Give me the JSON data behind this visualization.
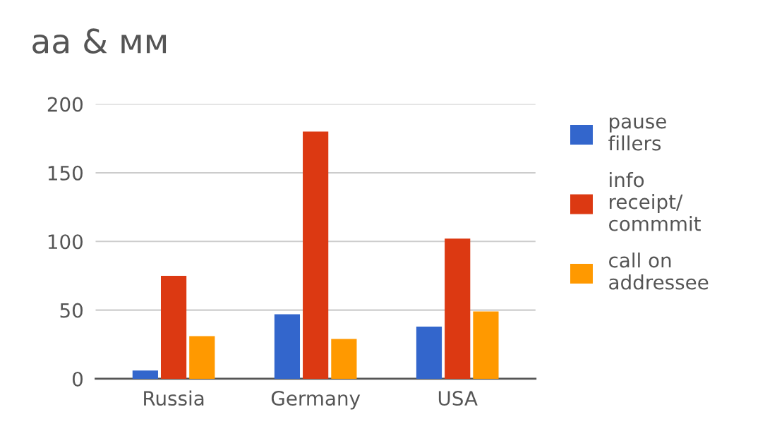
{
  "chart_data": {
    "type": "bar",
    "title": "aa & мм",
    "categories": [
      "Russia",
      "Germany",
      "USA"
    ],
    "series": [
      {
        "name": "pause\nfillers",
        "color": "#3366cc",
        "values": [
          6,
          47,
          38
        ]
      },
      {
        "name": "info\nreceipt/\ncommmit",
        "color": "#dc3912",
        "values": [
          75,
          180,
          102
        ]
      },
      {
        "name": "call on\naddressee",
        "color": "#ff9900",
        "values": [
          31,
          29,
          49
        ]
      }
    ],
    "ylim": [
      0,
      200
    ],
    "yticks": [
      0,
      50,
      100,
      150,
      200
    ],
    "grid": "y",
    "legend": "right"
  }
}
